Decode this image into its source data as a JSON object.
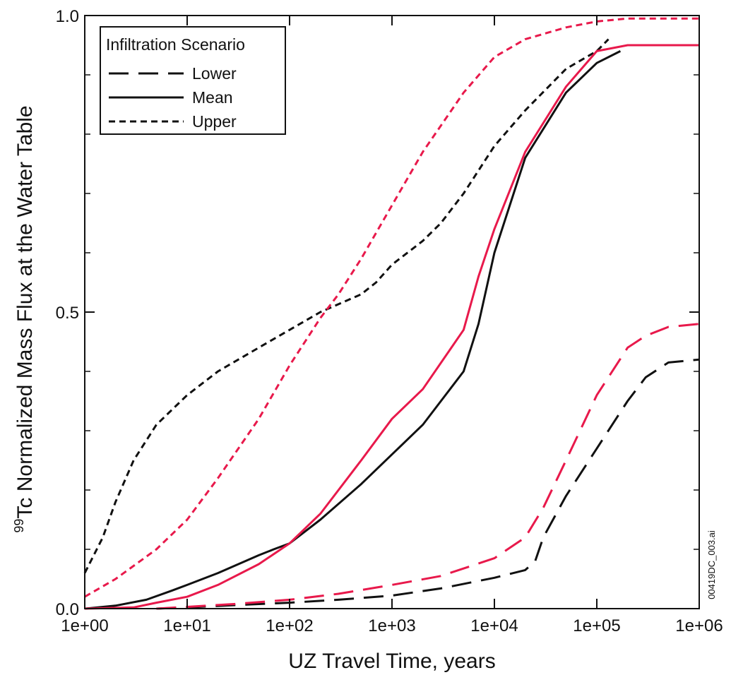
{
  "chart_data": {
    "type": "line",
    "xscale": "log",
    "xlim": [
      1,
      1000000
    ],
    "ylim": [
      0,
      1
    ],
    "xlabel": "UZ Travel Time, years",
    "ylabel_sup": "99",
    "ylabel": "Tc Normalized Mass Flux at the Water Table",
    "x_tick_labels": [
      "1e+00",
      "1e+01",
      "1e+02",
      "1e+03",
      "1e+04",
      "1e+05",
      "1e+06"
    ],
    "x_ticks": [
      1,
      10,
      100,
      1000,
      10000,
      100000,
      1000000
    ],
    "y_tick_labels": [
      "0.0",
      "0.5",
      "1.0"
    ],
    "y_ticks": [
      0,
      0.5,
      1
    ],
    "legend_title": "Infiltration Scenario",
    "legend_position": "top-left",
    "legend": [
      {
        "label": "Lower",
        "dash": "long-dash"
      },
      {
        "label": "Mean",
        "dash": "solid"
      },
      {
        "label": "Upper",
        "dash": "short-dash"
      }
    ],
    "colors": {
      "black": "#111111",
      "red": "#e8194b"
    },
    "side_label": "00419DC_003.ai",
    "series": [
      {
        "style": "upper",
        "color": "black",
        "x": [
          1,
          1.5,
          2,
          3,
          5,
          10,
          20,
          50,
          100,
          200,
          500,
          700,
          1000,
          2000,
          3000,
          5000,
          10000,
          20000,
          50000,
          100000,
          130000
        ],
        "y": [
          0.06,
          0.12,
          0.18,
          0.25,
          0.31,
          0.36,
          0.4,
          0.44,
          0.47,
          0.5,
          0.53,
          0.55,
          0.58,
          0.62,
          0.65,
          0.7,
          0.78,
          0.84,
          0.91,
          0.94,
          0.96
        ]
      },
      {
        "style": "upper",
        "color": "red",
        "x": [
          1,
          2,
          5,
          10,
          20,
          50,
          100,
          200,
          300,
          500,
          1000,
          2000,
          5000,
          10000,
          20000,
          50000,
          100000,
          200000,
          1000000
        ],
        "y": [
          0.02,
          0.05,
          0.1,
          0.15,
          0.22,
          0.32,
          0.41,
          0.49,
          0.53,
          0.59,
          0.68,
          0.77,
          0.87,
          0.93,
          0.96,
          0.98,
          0.99,
          0.995,
          0.995
        ]
      },
      {
        "style": "mean",
        "color": "black",
        "x": [
          1,
          2,
          4,
          7,
          10,
          20,
          50,
          70,
          100,
          200,
          500,
          1000,
          2000,
          5000,
          7000,
          10000,
          20000,
          50000,
          100000,
          170000
        ],
        "y": [
          0.0,
          0.005,
          0.015,
          0.03,
          0.04,
          0.06,
          0.09,
          0.1,
          0.11,
          0.15,
          0.21,
          0.26,
          0.31,
          0.4,
          0.48,
          0.6,
          0.76,
          0.87,
          0.92,
          0.94
        ]
      },
      {
        "style": "mean",
        "color": "red",
        "x": [
          1,
          3,
          5,
          10,
          20,
          50,
          100,
          200,
          500,
          1000,
          2000,
          5000,
          7000,
          10000,
          20000,
          50000,
          100000,
          200000,
          1000000
        ],
        "y": [
          0.0,
          0.002,
          0.01,
          0.02,
          0.04,
          0.075,
          0.11,
          0.16,
          0.25,
          0.32,
          0.37,
          0.47,
          0.56,
          0.64,
          0.77,
          0.88,
          0.94,
          0.95,
          0.95
        ]
      },
      {
        "style": "lower",
        "color": "black",
        "x": [
          5,
          10,
          30,
          100,
          300,
          1000,
          3000,
          10000,
          20000,
          25000,
          30000,
          50000,
          100000,
          200000,
          300000,
          500000,
          1000000
        ],
        "y": [
          0.0,
          0.002,
          0.006,
          0.01,
          0.015,
          0.022,
          0.034,
          0.052,
          0.065,
          0.08,
          0.12,
          0.19,
          0.27,
          0.35,
          0.39,
          0.415,
          0.42
        ]
      },
      {
        "style": "lower",
        "color": "red",
        "x": [
          5,
          10,
          30,
          100,
          300,
          1000,
          3000,
          10000,
          20000,
          30000,
          50000,
          100000,
          200000,
          300000,
          500000,
          1000000
        ],
        "y": [
          0.0,
          0.003,
          0.008,
          0.015,
          0.025,
          0.04,
          0.055,
          0.085,
          0.12,
          0.17,
          0.25,
          0.36,
          0.44,
          0.46,
          0.475,
          0.48
        ]
      }
    ]
  }
}
